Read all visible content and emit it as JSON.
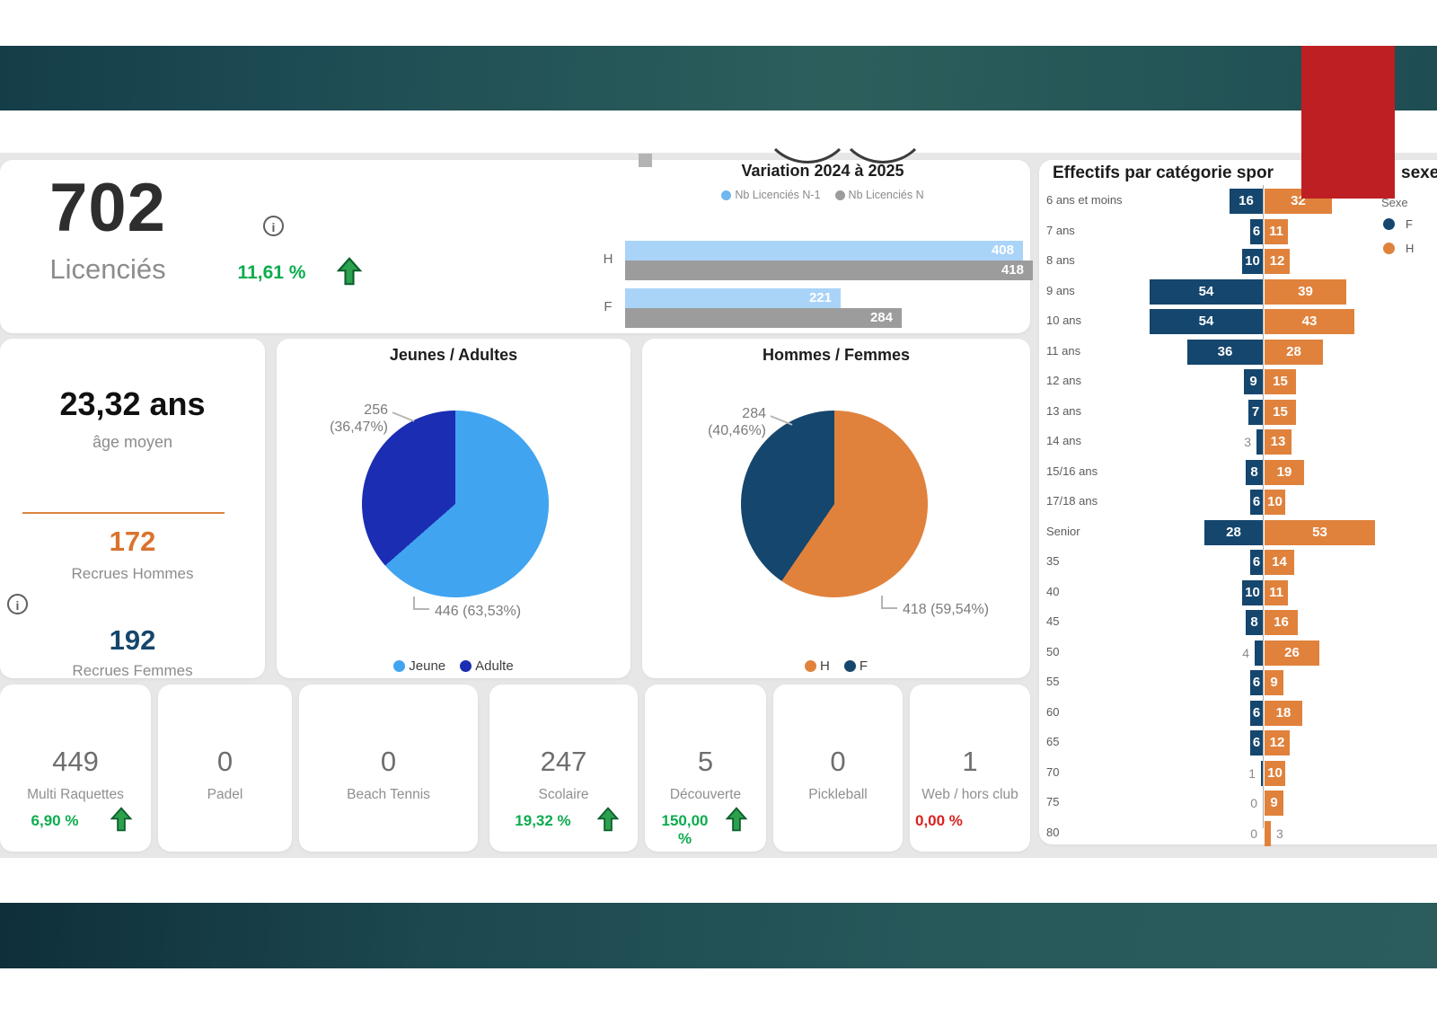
{
  "colors": {
    "pale_blue": "#A9D4F8",
    "pale_blue_dot": "#70B6EF",
    "bar_gray": "#9C9C9C",
    "pie_blue": "#41A4F1",
    "royal_blue": "#1B2DB2",
    "navy": "#15466E",
    "orange": "#E0823C",
    "green": "#0CAC4E",
    "red": "#D92121",
    "red_box": "#BE1F22",
    "teal_dark": "#143D48",
    "teal_light": "#2C5F5C",
    "canvas": "#E7E7E7",
    "divider_orange": "#D9853F"
  },
  "kpis": {
    "licencies": {
      "value": "702",
      "label": "Licenciés",
      "delta_pct": "11,61 %"
    },
    "age": {
      "value": "23,32 ans",
      "label": "âge moyen",
      "recrues_h": {
        "value": "172",
        "label": "Recrues Hommes"
      },
      "recrues_f": {
        "value": "192",
        "label": "Recrues Femmes"
      }
    }
  },
  "icons": {
    "info": "i"
  },
  "chart_data": [
    {
      "id": "variation",
      "type": "bar",
      "orientation": "horizontal",
      "title": "Variation 2024 à 2025",
      "legend_position": "top",
      "categories": [
        "H",
        "F"
      ],
      "series": [
        {
          "name": "Nb Licenciés N-1",
          "color": "#A9D4F8",
          "dot_color": "#70B6EF",
          "values": [
            408,
            221
          ]
        },
        {
          "name": "Nb Licenciés N",
          "color": "#9C9C9C",
          "dot_color": "#9C9C9C",
          "values": [
            418,
            284
          ]
        }
      ]
    },
    {
      "id": "jeunes_adultes",
      "type": "pie",
      "title": "Jeunes / Adultes",
      "start_angle_deg": 0,
      "direction": "clockwise",
      "legend_position": "bottom",
      "slices": [
        {
          "label": "Jeune",
          "value": 446,
          "pct_label": "63,53%",
          "color": "#41A4F1"
        },
        {
          "label": "Adulte",
          "value": 256,
          "pct_label": "36,47%",
          "color": "#1B2DB2"
        }
      ]
    },
    {
      "id": "hommes_femmes",
      "type": "pie",
      "title": "Hommes / Femmes",
      "start_angle_deg": 0,
      "direction": "clockwise",
      "legend_position": "bottom",
      "slices": [
        {
          "label": "H",
          "value": 418,
          "pct_label": "59,54%",
          "color": "#E0823C"
        },
        {
          "label": "F",
          "value": 284,
          "pct_label": "40,46%",
          "color": "#15466E"
        }
      ]
    },
    {
      "id": "effectifs",
      "type": "bar",
      "subtype": "tornado",
      "title_visible_left": "Effectifs par catégorie spor",
      "title_visible_right": "sexe",
      "legend_title": "Sexe",
      "categories": [
        "6 ans et moins",
        "7 ans",
        "8 ans",
        "9 ans",
        "10 ans",
        "11 ans",
        "12 ans",
        "13 ans",
        "14 ans",
        "15/16 ans",
        "17/18 ans",
        "Senior",
        "35",
        "40",
        "45",
        "50",
        "55",
        "60",
        "65",
        "70",
        "75",
        "80"
      ],
      "series": [
        {
          "name": "F",
          "color": "#15466E",
          "values": [
            16,
            6,
            10,
            54,
            54,
            36,
            9,
            7,
            3,
            8,
            6,
            28,
            6,
            10,
            8,
            4,
            6,
            6,
            6,
            1,
            0,
            0
          ]
        },
        {
          "name": "H",
          "color": "#E0823C",
          "values": [
            32,
            11,
            12,
            39,
            43,
            28,
            15,
            15,
            13,
            19,
            10,
            53,
            14,
            11,
            16,
            26,
            9,
            18,
            12,
            10,
            9,
            3
          ]
        }
      ]
    }
  ],
  "bottom_cards": [
    {
      "value": "449",
      "label": "Multi Raquettes",
      "delta": "6,90 %",
      "delta_color": "green",
      "trend": "up"
    },
    {
      "value": "0",
      "label": "Padel"
    },
    {
      "value": "0",
      "label": "Beach Tennis"
    },
    {
      "value": "247",
      "label": "Scolaire",
      "delta": "19,32 %",
      "delta_color": "green",
      "trend": "up"
    },
    {
      "value": "5",
      "label": "Découverte",
      "delta": "150,00 %",
      "delta_color": "green",
      "trend": "up"
    },
    {
      "value": "0",
      "label": "Pickleball"
    },
    {
      "value": "1",
      "label": "Web / hors club",
      "delta": "0,00 %",
      "delta_color": "red"
    }
  ]
}
